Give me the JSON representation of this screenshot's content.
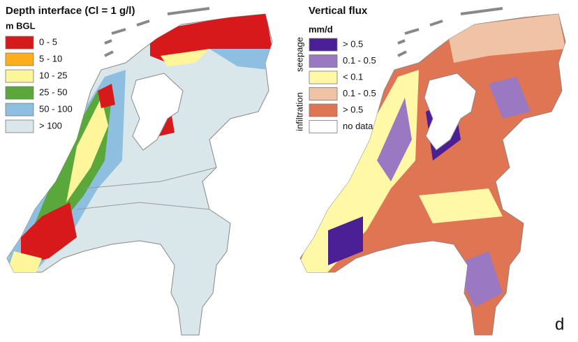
{
  "left_map": {
    "title": "Depth interface (Cl = 1 g/l)",
    "unit": "m BGL",
    "legend": [
      {
        "label": "0 - 5",
        "color": "#d7191c"
      },
      {
        "label": "5 - 10",
        "color": "#fdae1a"
      },
      {
        "label": "10 - 25",
        "color": "#fff59a"
      },
      {
        "label": "25 - 50",
        "color": "#5aa83c"
      },
      {
        "label": "50 - 100",
        "color": "#8fbfe0"
      },
      {
        "label": "> 100",
        "color": "#d9e6ea"
      }
    ]
  },
  "right_map": {
    "title": "Vertical flux",
    "unit": "mm/d",
    "legend": [
      {
        "label": "> 0.5",
        "color": "#4b1f96"
      },
      {
        "label": "0.1 - 0.5",
        "color": "#9b78c2"
      },
      {
        "label": "< 0.1",
        "color": "#fff8a6"
      },
      {
        "label": "0.1 - 0.5",
        "color": "#f0c3a7"
      },
      {
        "label": "> 0.5",
        "color": "#df7552"
      },
      {
        "label": "no data",
        "color": "#ffffff"
      }
    ],
    "side_labels": {
      "seepage": "seepage",
      "infiltration": "infiltration"
    },
    "panel_label": "d"
  }
}
